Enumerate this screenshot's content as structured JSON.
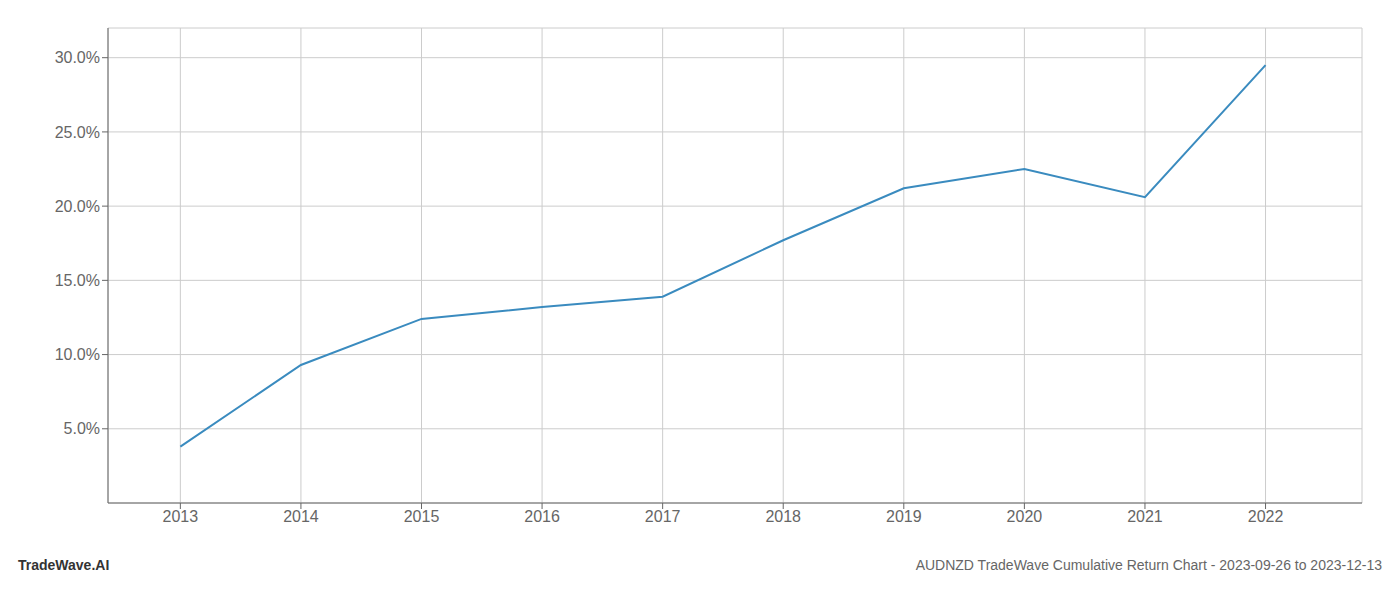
{
  "chart_data": {
    "type": "line",
    "title": "AUDNZD TradeWave Cumulative Return Chart - 2023-09-26 to 2023-12-13",
    "annotations": [
      "TradeWave.AI"
    ],
    "x": [
      2013,
      2014,
      2015,
      2016,
      2017,
      2018,
      2019,
      2020,
      2021,
      2022
    ],
    "values": [
      3.8,
      9.3,
      12.4,
      13.2,
      13.9,
      17.7,
      21.2,
      22.5,
      20.6,
      29.5
    ],
    "color": "#3a8bbf",
    "xlim": [
      2012.4,
      2022.8
    ],
    "xticks": [
      2013,
      2014,
      2015,
      2016,
      2017,
      2018,
      2019,
      2020,
      2021,
      2022
    ],
    "ylim": [
      0,
      32
    ],
    "yticks": [
      {
        "value": 5.0,
        "label": "5.0%"
      },
      {
        "value": 10.0,
        "label": "10.0%"
      },
      {
        "value": 15.0,
        "label": "15.0%"
      },
      {
        "value": 20.0,
        "label": "20.0%"
      },
      {
        "value": 25.0,
        "label": "25.0%"
      },
      {
        "value": 30.0,
        "label": "30.0%"
      }
    ],
    "grid": true
  }
}
